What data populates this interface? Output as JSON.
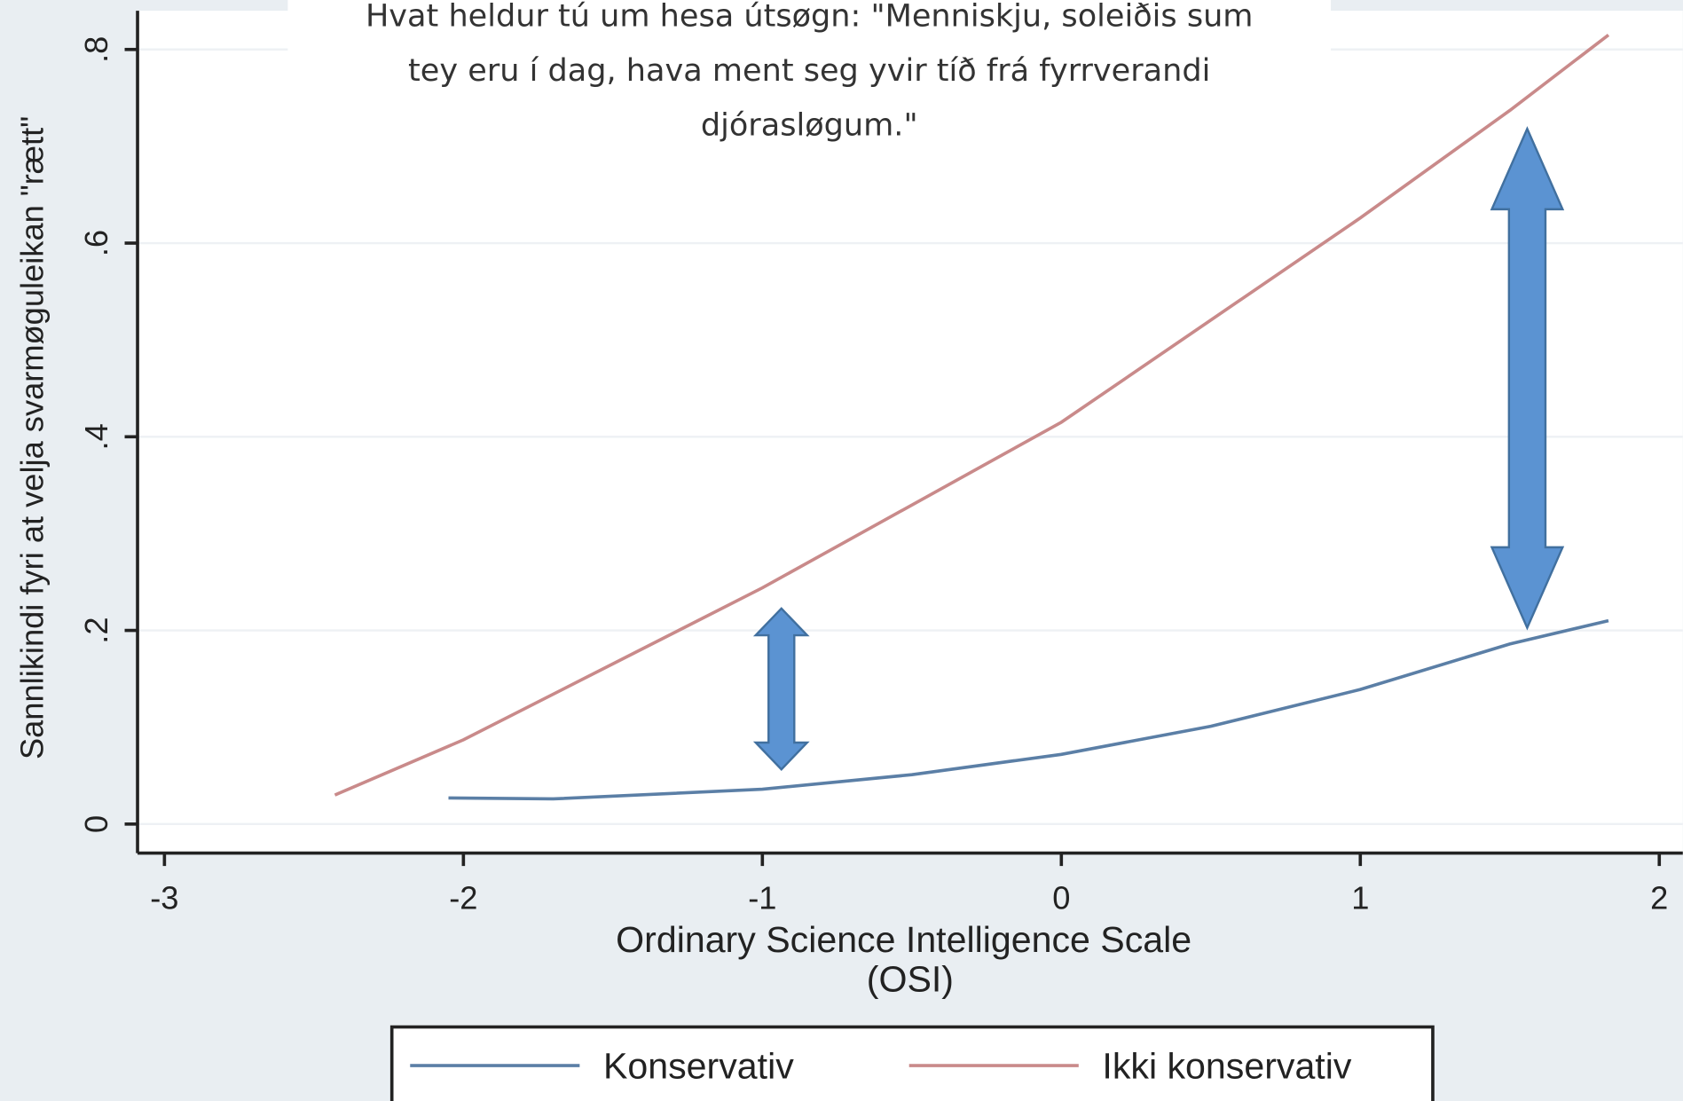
{
  "chart_data": {
    "type": "line",
    "title": [
      "Hvat heldur tú um hesa útsøgn: \"Menniskju, soleiðis sum",
      "tey eru í dag, hava ment seg yvir tíð frá fyrrverandi",
      "djórasløgum.\""
    ],
    "x_label": [
      "Ordinary Science Intelligence Scale",
      "(OSI)"
    ],
    "y_label": "Sannlikindi fyri at velja svarmøguleikan \"rætt\"",
    "xlim": [
      -3.09,
      2.05
    ],
    "ylim": [
      -0.03,
      0.84
    ],
    "xticks": [
      -3,
      -2,
      -1,
      0,
      1,
      2
    ],
    "yticks": [
      0,
      {
        "value": 0.2,
        "label": ".2"
      },
      {
        "value": 0.4,
        "label": ".4"
      },
      {
        "value": 0.6,
        "label": ".6"
      },
      {
        "value": 0.8,
        "label": ".8"
      }
    ],
    "grid": true,
    "legend": "bottom",
    "series": [
      {
        "name": "Konservativ",
        "color": "#5b7fa6",
        "x": [
          -2.05,
          -1.7,
          -1.0,
          -0.5,
          0,
          0.5,
          1.0,
          1.5,
          1.83
        ],
        "values": [
          0.027,
          0.026,
          0.036,
          0.051,
          0.072,
          0.101,
          0.139,
          0.186,
          0.21
        ]
      },
      {
        "name": "Ikki konservativ",
        "color": "#c98a8a",
        "x": [
          -2.43,
          -2.0,
          -1.0,
          0,
          1.0,
          1.5,
          1.83
        ],
        "values": [
          0.03,
          0.087,
          0.244,
          0.415,
          0.626,
          0.737,
          0.815
        ]
      }
    ]
  }
}
